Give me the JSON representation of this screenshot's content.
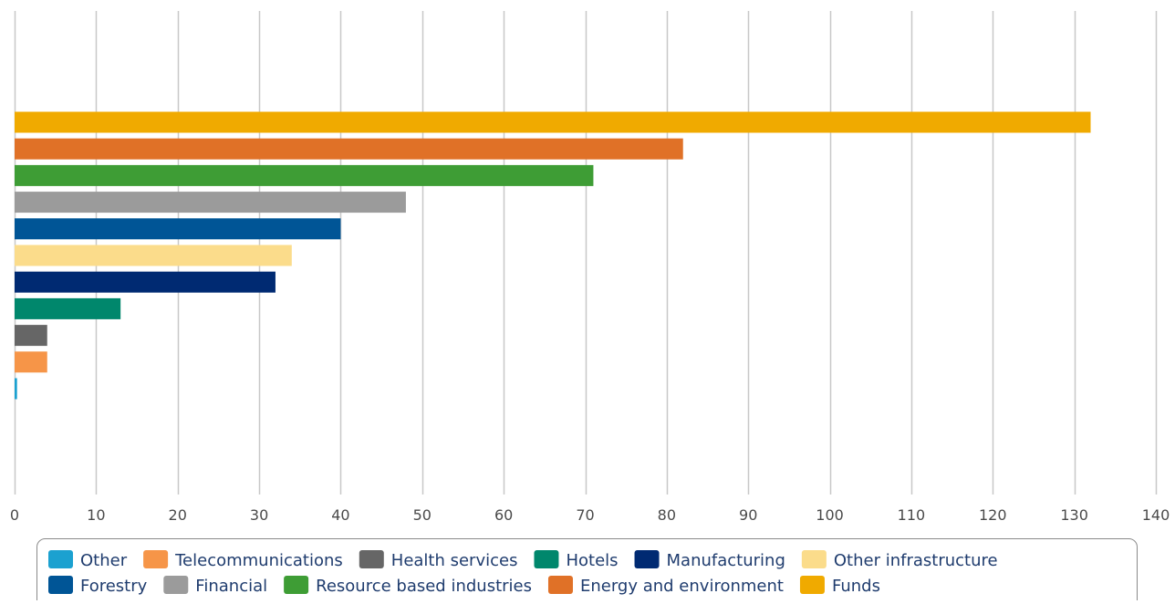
{
  "chart_data": {
    "type": "bar",
    "orientation": "horizontal",
    "categories": [
      "Other",
      "Telecommunications",
      "Health services",
      "Hotels",
      "Manufacturing",
      "Other infrastructure",
      "Forestry",
      "Financial",
      "Resource based industries",
      "Energy and environment",
      "Funds"
    ],
    "values": [
      0.3,
      4,
      4,
      13,
      32,
      34,
      40,
      48,
      71,
      82,
      132
    ],
    "colors": [
      "#1ba1d0",
      "#f69548",
      "#666666",
      "#00876c",
      "#002a72",
      "#fbdc8b",
      "#005596",
      "#9b9b9b",
      "#3e9d35",
      "#e07127",
      "#f0aa00"
    ],
    "xlim": [
      0,
      140
    ],
    "x_ticks": [
      "0",
      "10",
      "20",
      "30",
      "40",
      "50",
      "60",
      "70",
      "80",
      "90",
      "100",
      "110",
      "120",
      "130",
      "140"
    ],
    "grid": "vertical",
    "legend": {
      "position": "bottom",
      "rows": [
        [
          "Other",
          "Telecommunications",
          "Health services",
          "Hotels",
          "Manufacturing",
          "Other infrastructure"
        ],
        [
          "Forestry",
          "Financial",
          "Resource based industries",
          "Energy and environment",
          "Funds"
        ]
      ]
    },
    "title": "",
    "xlabel": "",
    "ylabel": ""
  }
}
